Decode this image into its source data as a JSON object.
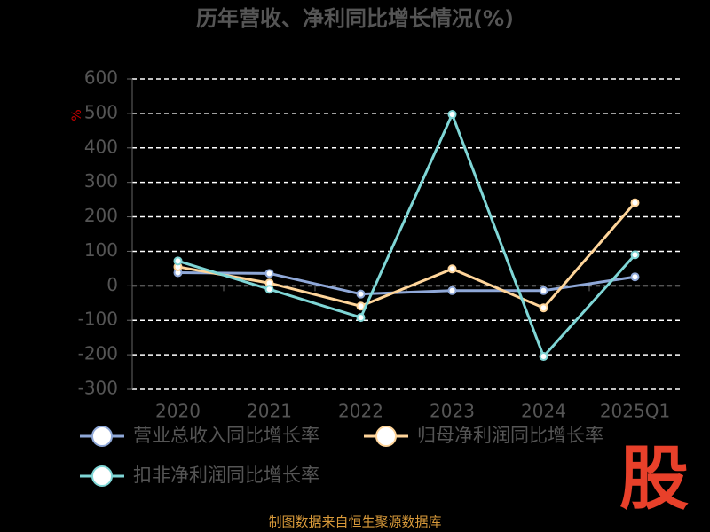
{
  "chart_data": {
    "type": "line",
    "title": "历年营收、净利同比增长情况(%)",
    "y_label": "%",
    "categories": [
      "2020",
      "2021",
      "2022",
      "2023",
      "2024",
      "2025Q1"
    ],
    "series": [
      {
        "name": "营业总收入同比增长率",
        "color": "#8fa8d8",
        "values": [
          38,
          36,
          -24,
          -14,
          -14,
          26
        ]
      },
      {
        "name": "归母净利润同比增长率",
        "color": "#ffd59a",
        "values": [
          55,
          8,
          -59,
          49,
          -64,
          241
        ]
      },
      {
        "name": "扣非净利润同比增长率",
        "color": "#7fd6d6",
        "values": [
          72,
          -10,
          -92,
          497,
          -205,
          90
        ]
      }
    ],
    "ylim": [
      -300,
      600
    ],
    "yticks": [
      -300,
      -200,
      -100,
      0,
      100,
      200,
      300,
      400,
      500,
      600
    ],
    "grid": true,
    "source": "制图数据来自恒生聚源数据库",
    "watermark": "股"
  }
}
